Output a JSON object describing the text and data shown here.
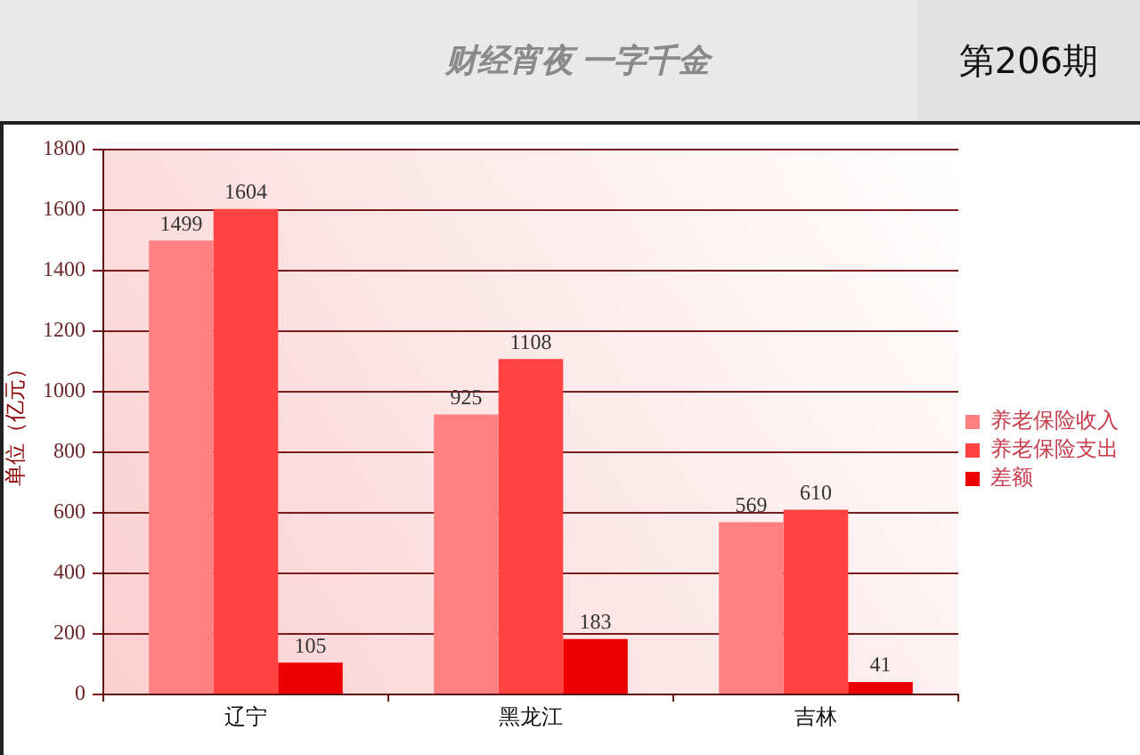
{
  "chart_data": {
    "type": "bar",
    "annotations": [
      "财经宵夜 一字千金",
      "第206期"
    ],
    "ylabel": "单位（亿元）",
    "categories": [
      "辽宁",
      "黑龙江",
      "吉林"
    ],
    "series": [
      {
        "name": "养老保险收入",
        "color": "#ff8080",
        "values": [
          1499,
          925,
          569
        ]
      },
      {
        "name": "养老保险支出",
        "color": "#ff4242",
        "values": [
          1604,
          1108,
          610
        ]
      },
      {
        "name": "差额",
        "color": "#ee0000",
        "values": [
          105,
          183,
          41
        ]
      }
    ],
    "ylim": [
      0,
      1800
    ],
    "yticks": [
      0,
      200,
      400,
      600,
      800,
      1000,
      1200,
      1400,
      1600,
      1800
    ],
    "grid": "y",
    "legend": "right",
    "data_labels": true
  }
}
